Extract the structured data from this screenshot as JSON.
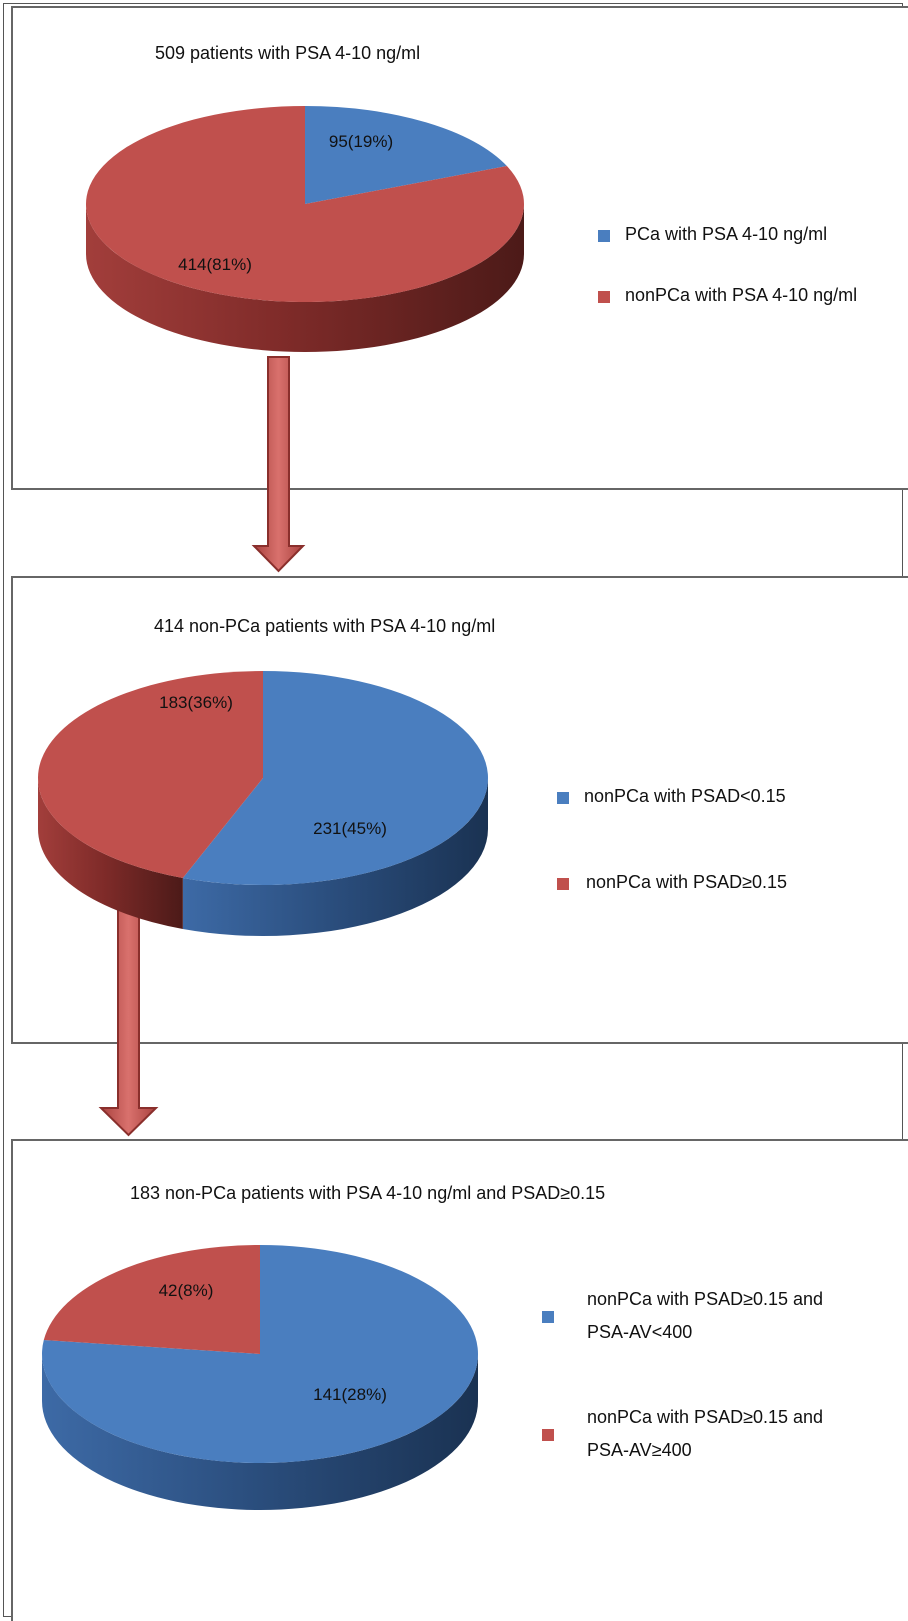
{
  "colors": {
    "blue": "#4a7ebf",
    "red": "#c0504d"
  },
  "chart_data": [
    {
      "type": "pie",
      "title": "509 patients with PSA 4-10 ng/ml",
      "slices": [
        {
          "label": "PCa with PSA 4-10 ng/ml",
          "value": 95,
          "data_label": "95(19%)",
          "color": "#4a7ebf"
        },
        {
          "label": "nonPCa with PSA 4-10 ng/ml",
          "value": 414,
          "data_label": "414(81%)",
          "color": "#c0504d"
        }
      ],
      "legend": [
        {
          "text": "PCa with PSA 4-10 ng/ml",
          "color": "#4a7ebf"
        },
        {
          "text": "nonPCa with PSA 4-10 ng/ml",
          "color": "#c0504d"
        }
      ],
      "legend_position": "right"
    },
    {
      "type": "pie",
      "title": "414 non-PCa patients with PSA 4-10 ng/ml",
      "slices": [
        {
          "label": "nonPCa with PSAD<0.15",
          "value": 231,
          "data_label": "231(45%)",
          "color": "#4a7ebf"
        },
        {
          "label": "nonPCa with PSAD≥0.15",
          "value": 183,
          "data_label": "183(36%)",
          "color": "#c0504d"
        }
      ],
      "legend": [
        {
          "text": "nonPCa with PSAD<0.15",
          "color": "#4a7ebf"
        },
        {
          "text": "nonPCa with PSAD≥0.15",
          "color": "#c0504d"
        }
      ],
      "legend_position": "right"
    },
    {
      "type": "pie",
      "title": "183 non-PCa patients with PSA 4-10 ng/ml and PSAD≥0.15",
      "slices": [
        {
          "label": "nonPCa with PSAD≥0.15 and PSA-AV<400",
          "value": 141,
          "data_label": "141(28%)",
          "color": "#4a7ebf"
        },
        {
          "label": "nonPCa with PSAD≥0.15 and PSA-AV≥400",
          "value": 42,
          "data_label": "42(8%)",
          "color": "#c0504d"
        }
      ],
      "legend": [
        {
          "lines": [
            "nonPCa with PSAD≥0.15 and",
            "PSA-AV<400"
          ],
          "color": "#4a7ebf"
        },
        {
          "lines": [
            "nonPCa with PSAD≥0.15 and",
            "PSA-AV≥400"
          ],
          "color": "#c0504d"
        }
      ],
      "legend_position": "right"
    }
  ]
}
